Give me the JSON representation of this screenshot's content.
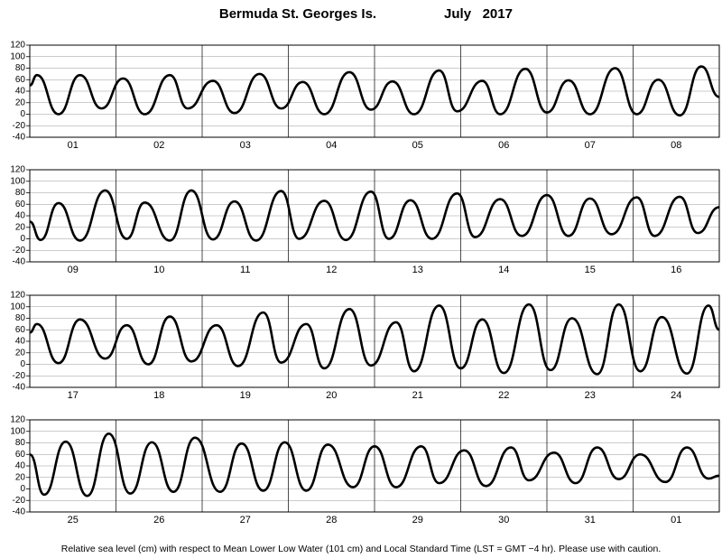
{
  "title": "Bermuda St. Georges Is.",
  "period": "July   2017",
  "footer": "Relative sea level (cm) with respect to Mean Lower Low Water (101 cm) and Local Standard Time (LST = GMT −4 hr). Please use with caution.",
  "chart_data": [
    {
      "type": "line",
      "color": "#000000",
      "grid": true,
      "xlim": [
        0,
        192
      ],
      "ylim": [
        -40,
        120
      ],
      "yticks": [
        -40,
        -20,
        0,
        20,
        40,
        60,
        80,
        100,
        120
      ],
      "categories": [
        "01",
        "02",
        "03",
        "04",
        "05",
        "06",
        "07",
        "08"
      ],
      "x": [
        0,
        2,
        8,
        14,
        20,
        26,
        32,
        39,
        44,
        51,
        57,
        64,
        70,
        76,
        82,
        89,
        95,
        101,
        107,
        114,
        119,
        126,
        131,
        138,
        144,
        150,
        156,
        163,
        169,
        175,
        181,
        187,
        192
      ],
      "values": [
        50,
        68,
        0,
        68,
        10,
        62,
        0,
        68,
        10,
        58,
        2,
        70,
        10,
        56,
        0,
        73,
        8,
        57,
        0,
        76,
        5,
        58,
        0,
        79,
        3,
        59,
        0,
        80,
        0,
        60,
        -2,
        83,
        30
      ]
    },
    {
      "type": "line",
      "color": "#000000",
      "grid": true,
      "xlim": [
        0,
        192
      ],
      "ylim": [
        -40,
        120
      ],
      "yticks": [
        -40,
        -20,
        0,
        20,
        40,
        60,
        80,
        100,
        120
      ],
      "categories": [
        "09",
        "10",
        "11",
        "12",
        "13",
        "14",
        "15",
        "16"
      ],
      "x": [
        0,
        3,
        8,
        14,
        21,
        27,
        32,
        39,
        45,
        51,
        57,
        63,
        70,
        75,
        82,
        88,
        95,
        100,
        106,
        112,
        119,
        124,
        131,
        137,
        144,
        150,
        156,
        162,
        169,
        174,
        181,
        186,
        192
      ],
      "values": [
        30,
        -2,
        62,
        -3,
        84,
        0,
        63,
        -3,
        84,
        -1,
        65,
        -3,
        83,
        0,
        66,
        -2,
        82,
        0,
        67,
        0,
        79,
        3,
        69,
        5,
        76,
        5,
        70,
        8,
        72,
        5,
        73,
        10,
        55
      ]
    },
    {
      "type": "line",
      "color": "#000000",
      "grid": true,
      "xlim": [
        0,
        192
      ],
      "ylim": [
        -40,
        120
      ],
      "yticks": [
        -40,
        -20,
        0,
        20,
        40,
        60,
        80,
        100,
        120
      ],
      "categories": [
        "17",
        "18",
        "19",
        "20",
        "21",
        "22",
        "23",
        "24"
      ],
      "x": [
        0,
        2,
        8,
        14,
        21,
        27,
        33,
        39,
        45,
        52,
        58,
        65,
        70,
        77,
        82,
        89,
        95,
        102,
        107,
        114,
        120,
        126,
        132,
        139,
        145,
        151,
        158,
        164,
        170,
        176,
        183,
        189,
        192
      ],
      "values": [
        55,
        70,
        2,
        78,
        10,
        68,
        0,
        83,
        5,
        68,
        -3,
        90,
        3,
        70,
        -7,
        96,
        -2,
        73,
        -12,
        102,
        -7,
        78,
        -15,
        104,
        -10,
        80,
        -17,
        104,
        -12,
        82,
        -16,
        102,
        60
      ]
    },
    {
      "type": "line",
      "color": "#000000",
      "grid": true,
      "xlim": [
        0,
        192
      ],
      "ylim": [
        -40,
        120
      ],
      "yticks": [
        -40,
        -20,
        0,
        20,
        40,
        60,
        80,
        100,
        120
      ],
      "categories": [
        "25",
        "26",
        "27",
        "28",
        "29",
        "30",
        "31",
        "01"
      ],
      "x": [
        0,
        4,
        10,
        16,
        22,
        28,
        34,
        40,
        46,
        53,
        59,
        65,
        71,
        77,
        83,
        90,
        96,
        102,
        109,
        114,
        121,
        127,
        134,
        139,
        146,
        152,
        158,
        164,
        170,
        177,
        183,
        189,
        192
      ],
      "values": [
        60,
        -10,
        82,
        -12,
        96,
        -8,
        81,
        -5,
        89,
        -5,
        79,
        -3,
        81,
        -3,
        77,
        3,
        74,
        3,
        74,
        10,
        67,
        5,
        72,
        15,
        63,
        10,
        72,
        17,
        60,
        12,
        72,
        18,
        23
      ]
    }
  ]
}
